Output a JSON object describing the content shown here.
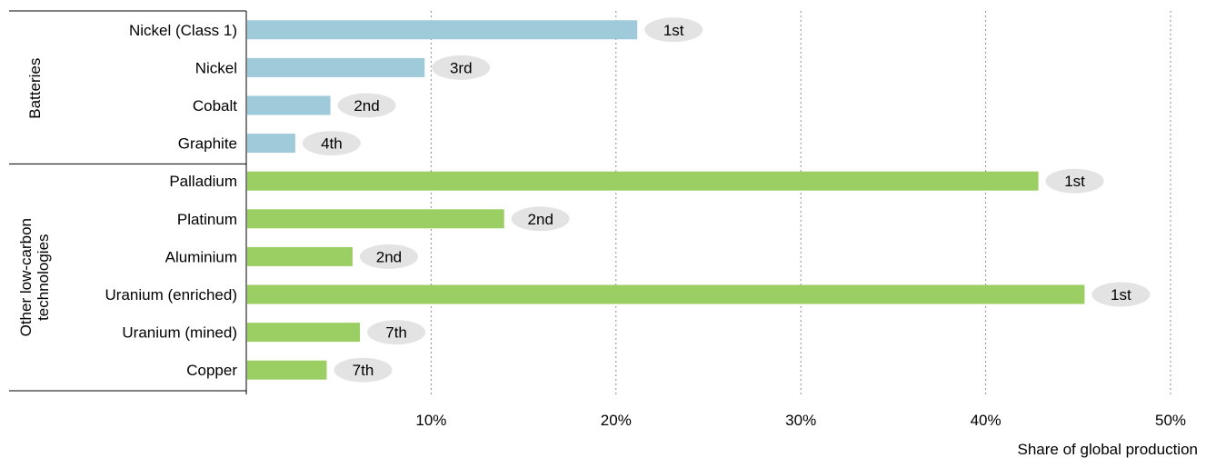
{
  "chart_data": {
    "type": "bar",
    "orientation": "horizontal",
    "groups": [
      {
        "name": "Batteries",
        "color": "#9ecad9",
        "items": [
          {
            "category": "Nickel (Class 1)",
            "value": 21.1,
            "rank": "1st"
          },
          {
            "category": "Nickel",
            "value": 9.6,
            "rank": "3rd"
          },
          {
            "category": "Cobalt",
            "value": 4.5,
            "rank": "2nd"
          },
          {
            "category": "Graphite",
            "value": 2.6,
            "rank": "4th"
          }
        ]
      },
      {
        "name": "Other low-carbon\ntechnologies",
        "color": "#9ccf63",
        "items": [
          {
            "category": "Palladium",
            "value": 42.8,
            "rank": "1st"
          },
          {
            "category": "Platinum",
            "value": 13.9,
            "rank": "2nd"
          },
          {
            "category": "Aluminium",
            "value": 5.7,
            "rank": "2nd"
          },
          {
            "category": "Uranium (enriched)",
            "value": 45.3,
            "rank": "1st"
          },
          {
            "category": "Uranium (mined)",
            "value": 6.1,
            "rank": "7th"
          },
          {
            "category": "Copper",
            "value": 4.3,
            "rank": "7th"
          }
        ]
      }
    ],
    "xticks": [
      10,
      20,
      30,
      40,
      50
    ],
    "xtick_labels": [
      "10%",
      "20%",
      "30%",
      "40%",
      "50%"
    ],
    "xlim": [
      0,
      50
    ],
    "xlabel": "Share of global production",
    "grid": "vertical dotted",
    "rank_badge_color": "#e3e3e3"
  }
}
